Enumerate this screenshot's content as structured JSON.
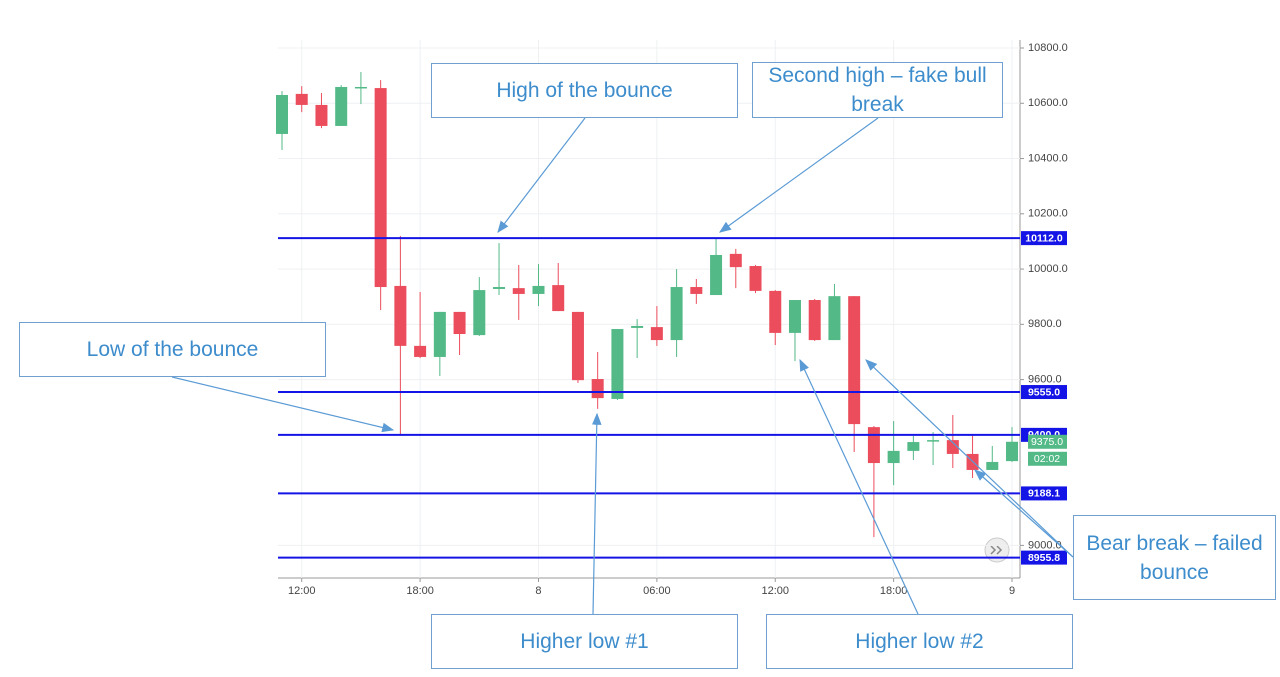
{
  "chart_data": {
    "type": "candlestick",
    "categories": [
      null,
      "12:00",
      null,
      null,
      null,
      null,
      null,
      "18:00",
      null,
      null,
      null,
      null,
      null,
      "8",
      null,
      null,
      null,
      null,
      null,
      "06:00",
      null,
      null,
      null,
      null,
      null,
      "12:00",
      null,
      null,
      null,
      null,
      null,
      "18:00",
      null,
      null,
      null,
      null,
      null,
      "9"
    ],
    "open": [
      10489,
      10634,
      10594,
      10518,
      10655,
      10655,
      9939,
      9722,
      9682,
      9845,
      9761,
      9928,
      9931,
      9910,
      9942,
      9845,
      9602,
      9530,
      9787,
      9790,
      9743,
      9935,
      9906,
      10055,
      10011,
      9921,
      9769,
      9888,
      9743,
      9902,
      9428,
      9298,
      9342,
      9378,
      9381,
      9331,
      9273,
      9305
    ],
    "high": [
      10644,
      10662,
      10637,
      10666,
      10713,
      10684,
      10120,
      9917,
      9845,
      9845,
      9971,
      10094,
      10015,
      10018,
      10022,
      9845,
      9700,
      9783,
      9819,
      9866,
      10000,
      9964,
      10112,
      10073,
      10015,
      9924,
      9888,
      9892,
      9946,
      9902,
      9432,
      9450,
      9396,
      9410,
      9472,
      9403,
      9360,
      9428
    ],
    "low": [
      10431,
      10568,
      10510,
      10518,
      10597,
      9852,
      9400,
      9678,
      9613,
      9689,
      9758,
      9906,
      9816,
      9866,
      9848,
      9588,
      9494,
      9526,
      9678,
      9722,
      9682,
      9874,
      9906,
      9931,
      9913,
      9725,
      9667,
      9740,
      9743,
      9338,
      9030,
      9218,
      9309,
      9291,
      9280,
      9244,
      9273,
      9302
    ],
    "close": [
      10630,
      10594,
      10518,
      10659,
      10659,
      9935,
      9722,
      9682,
      9845,
      9765,
      9924,
      9935,
      9910,
      9939,
      9848,
      9598,
      9533,
      9783,
      9794,
      9743,
      9935,
      9910,
      10051,
      10007,
      9921,
      9769,
      9888,
      9743,
      9902,
      9439,
      9298,
      9342,
      9374,
      9381,
      9331,
      9273,
      9302,
      9375
    ],
    "up_color": "#53b987",
    "down_color": "#eb4d5c",
    "ylim": [
      8882,
      10829
    ],
    "yticks": [
      {
        "value": 10800,
        "label": "10800.0"
      },
      {
        "value": 10600,
        "label": "10600.0"
      },
      {
        "value": 10400,
        "label": "10400.0"
      },
      {
        "value": 10200,
        "label": "10200.0"
      },
      {
        "value": 10000,
        "label": "10000.0"
      },
      {
        "value": 9800,
        "label": "9800.0"
      },
      {
        "value": 9600,
        "label": "9600.0"
      },
      {
        "value": 9000,
        "label": "9000.0"
      }
    ],
    "grid": true,
    "levels": [
      {
        "value": 10112,
        "label": "10112.0"
      },
      {
        "value": 9555,
        "label": "9555.0"
      },
      {
        "value": 9400,
        "label": "9400.0"
      },
      {
        "value": 9188.1,
        "label": "9188.1"
      },
      {
        "value": 8955.8,
        "label": "8955.8"
      }
    ],
    "level_color": "#1414e6",
    "last_price": {
      "value": 9375,
      "label": "9375.0"
    },
    "countdown": "02:02",
    "annotations": [
      {
        "text": "High of the bounce"
      },
      {
        "text": "Second high – fake bull break"
      },
      {
        "text": "Low of the bounce"
      },
      {
        "text": "Higher low #1"
      },
      {
        "text": "Higher low #2"
      },
      {
        "text": "Bear break – failed bounce"
      }
    ]
  }
}
